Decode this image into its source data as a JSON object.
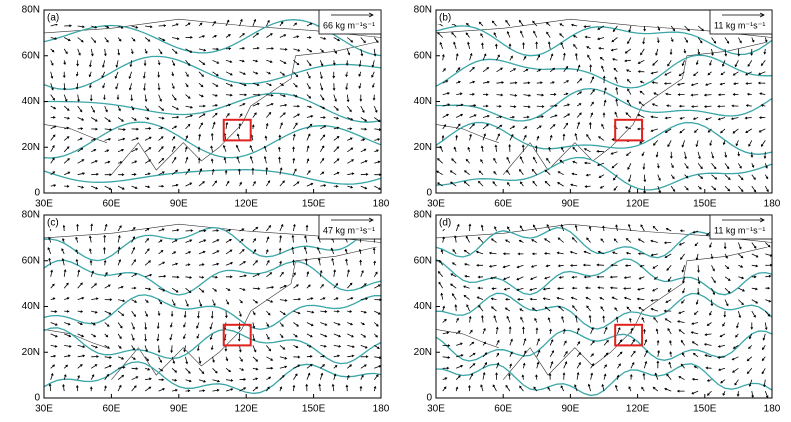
{
  "axes": {
    "xlim": [
      30,
      180
    ],
    "ylim": [
      0,
      80
    ],
    "xticks": [
      {
        "value": 30,
        "label": "30E"
      },
      {
        "value": 60,
        "label": "60E"
      },
      {
        "value": 90,
        "label": "90E"
      },
      {
        "value": 120,
        "label": "120E"
      },
      {
        "value": 150,
        "label": "150E"
      },
      180
    ],
    "yticks": [
      0,
      {
        "value": 20,
        "label": "20N"
      },
      {
        "value": 40,
        "label": "40N"
      },
      {
        "value": 60,
        "label": "60N"
      },
      {
        "value": 80,
        "label": "80N"
      }
    ]
  },
  "panels": [
    {
      "label": "(a)",
      "reference_vector": "66 kg m⁻¹s⁻¹",
      "box": {
        "lon": [
          110,
          122
        ],
        "lat": [
          23,
          32
        ]
      }
    },
    {
      "label": "(b)",
      "reference_vector": "11 kg m⁻¹s⁻¹",
      "box": {
        "lon": [
          110,
          122
        ],
        "lat": [
          23,
          32
        ]
      }
    },
    {
      "label": "(c)",
      "reference_vector": "47 kg m⁻¹s⁻¹",
      "box": {
        "lon": [
          110,
          122
        ],
        "lat": [
          23,
          32
        ]
      }
    },
    {
      "label": "(d)",
      "reference_vector": "11 kg m⁻¹s⁻¹",
      "box": {
        "lon": [
          110,
          122
        ],
        "lat": [
          23,
          32
        ]
      }
    }
  ]
}
